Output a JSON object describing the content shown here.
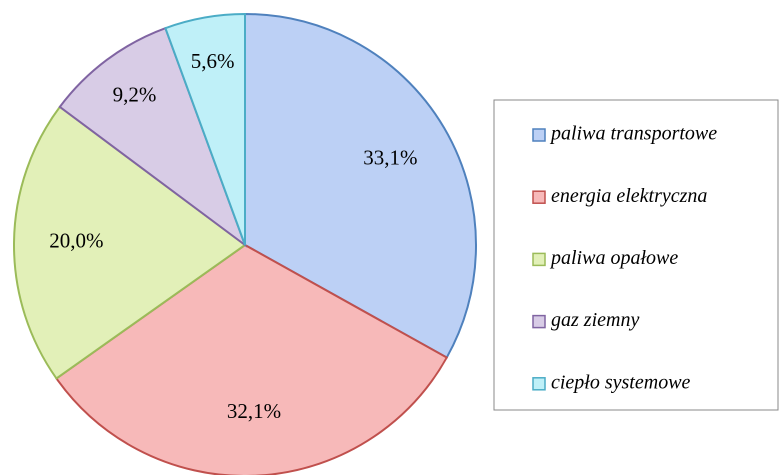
{
  "chart_data": {
    "type": "pie",
    "categories": [
      "paliwa transportowe",
      "energia elektryczna",
      "paliwa opałowe",
      "gaz ziemny",
      "ciepło systemowe"
    ],
    "values": [
      33.1,
      32.1,
      20.0,
      9.2,
      5.6
    ],
    "value_labels": [
      "33,1%",
      "32,1%",
      "20,0%",
      "9,2%",
      "5,6%"
    ],
    "colors": [
      "#bcd0f5",
      "#f7b9b9",
      "#e2f0b8",
      "#d8cce6",
      "#bff0f8"
    ],
    "stroke_colors": [
      "#4f81bd",
      "#c0504d",
      "#9bbb59",
      "#8064a2",
      "#4bacc6"
    ],
    "legend": "right"
  }
}
